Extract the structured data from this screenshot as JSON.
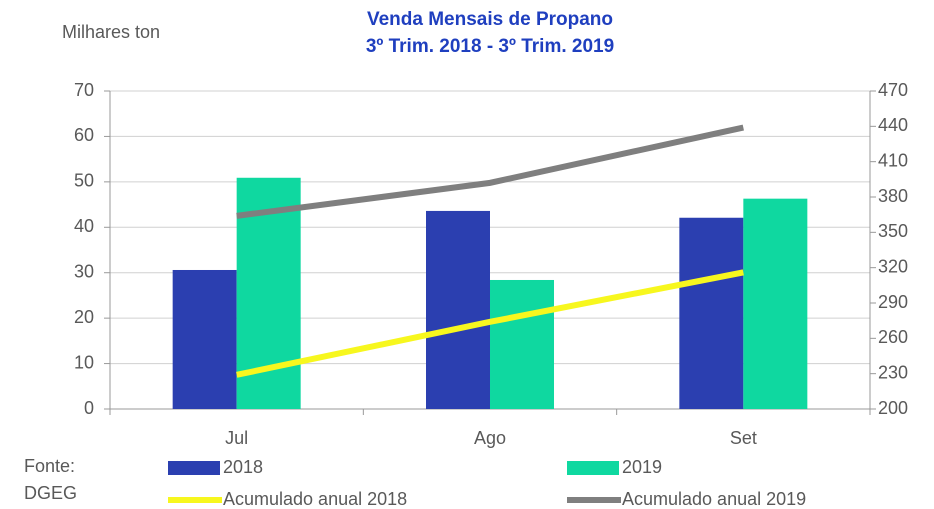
{
  "chart_data": {
    "type": "bar",
    "title": "Venda Mensais de Propano",
    "subtitle": "3º Trim. 2018 - 3º Trim. 2019",
    "y_label": "Milhares  ton",
    "source": [
      "Fonte:",
      "DGEG"
    ],
    "categories": [
      "Jul",
      "Ago",
      "Set"
    ],
    "series": [
      {
        "name": "2018",
        "type": "bar",
        "color": "#2b3fb0",
        "values": [
          30.6,
          43.6,
          42.1
        ]
      },
      {
        "name": "2019",
        "type": "bar",
        "color": "#0fd8a0",
        "values": [
          50.9,
          28.4,
          46.3
        ]
      },
      {
        "name": "Acumulado anual 2018",
        "type": "line",
        "axis": "y2",
        "color": "#f7f71e",
        "values": [
          229,
          274,
          316
        ]
      },
      {
        "name": "Acumulado anual 2019",
        "type": "line",
        "axis": "y2",
        "color": "#7f7f7f",
        "values": [
          364,
          392,
          439
        ]
      }
    ],
    "ylim": [
      0,
      70
    ],
    "yticks": [
      0,
      10,
      20,
      30,
      40,
      50,
      60,
      70
    ],
    "y2lim": [
      200,
      470
    ],
    "y2ticks": [
      200,
      230,
      260,
      290,
      320,
      350,
      380,
      410,
      440,
      470
    ],
    "grid": true
  }
}
